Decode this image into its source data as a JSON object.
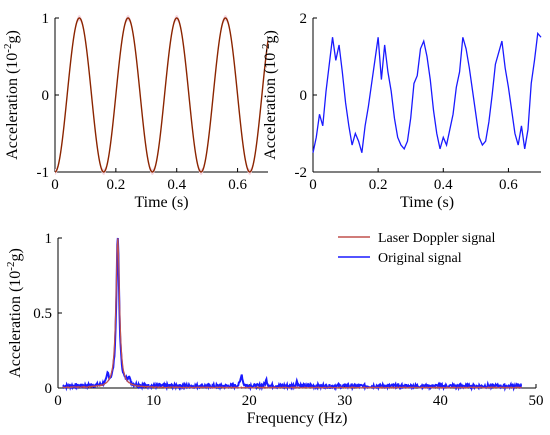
{
  "chart_data": [
    {
      "id": "top_left",
      "type": "line",
      "xlabel": "Time (s)",
      "ylabel": "Acceleration (10",
      "ylabel_sup": "-2",
      "ylabel_tail": "g)",
      "xlim": [
        0,
        0.7
      ],
      "ylim": [
        -1,
        1
      ],
      "xticks": [
        0,
        0.2,
        0.4,
        0.6
      ],
      "xtick_labels": [
        "0",
        "0.2",
        "0.4",
        "0.6"
      ],
      "yticks": [
        -1,
        0,
        1
      ],
      "ytick_labels": [
        "-1",
        "0",
        "1"
      ],
      "grid": false,
      "series": [
        {
          "color": "#8B2500",
          "frequency_hz": 6.25,
          "amplitude": 1.0,
          "phase_peak_s": 0.08,
          "x_start": 0.0,
          "x_end": 0.7
        }
      ],
      "shading": {
        "color": "#f6d8e3",
        "width_s": 0.022
      }
    },
    {
      "id": "top_right",
      "type": "line",
      "xlabel": "Time (s)",
      "ylabel": "Acceleration (10",
      "ylabel_sup": "-2",
      "ylabel_tail": "g)",
      "xlim": [
        0,
        0.7
      ],
      "ylim": [
        -2,
        2
      ],
      "xticks": [
        0,
        0.2,
        0.4,
        0.6
      ],
      "xtick_labels": [
        "0",
        "0.2",
        "0.4",
        "0.6"
      ],
      "yticks": [
        -2,
        0,
        2
      ],
      "ytick_labels": [
        "-2",
        "0",
        "2"
      ],
      "grid": false,
      "series": [
        {
          "color": "#1a1aff",
          "x": [
            0.0,
            0.01,
            0.02,
            0.03,
            0.04,
            0.05,
            0.06,
            0.07,
            0.08,
            0.09,
            0.1,
            0.11,
            0.12,
            0.13,
            0.14,
            0.15,
            0.16,
            0.17,
            0.18,
            0.19,
            0.2,
            0.21,
            0.22,
            0.23,
            0.24,
            0.25,
            0.26,
            0.27,
            0.28,
            0.29,
            0.3,
            0.31,
            0.32,
            0.33,
            0.34,
            0.35,
            0.36,
            0.37,
            0.38,
            0.39,
            0.4,
            0.41,
            0.42,
            0.43,
            0.44,
            0.45,
            0.46,
            0.47,
            0.48,
            0.49,
            0.5,
            0.51,
            0.52,
            0.53,
            0.54,
            0.55,
            0.56,
            0.57,
            0.58,
            0.59,
            0.6,
            0.61,
            0.62,
            0.63,
            0.64,
            0.65,
            0.66,
            0.67,
            0.68,
            0.69,
            0.7
          ],
          "y": [
            -1.5,
            -1.1,
            -0.5,
            -0.8,
            0.1,
            0.8,
            1.5,
            0.9,
            1.3,
            0.6,
            -0.2,
            -0.8,
            -1.3,
            -1.0,
            -1.2,
            -1.5,
            -0.8,
            -0.3,
            0.3,
            0.9,
            1.5,
            0.4,
            1.3,
            0.6,
            0.1,
            -0.6,
            -1.1,
            -1.3,
            -1.4,
            -1.2,
            -0.6,
            0.3,
            0.5,
            1.2,
            1.4,
            1.0,
            0.4,
            -0.4,
            -1.0,
            -1.4,
            -1.1,
            -1.3,
            -0.9,
            -0.5,
            0.2,
            0.6,
            1.5,
            1.2,
            0.7,
            0.1,
            -0.5,
            -1.1,
            -1.3,
            -1.2,
            -0.7,
            0.0,
            0.8,
            1.1,
            1.4,
            0.7,
            0.2,
            -0.4,
            -1.0,
            -1.3,
            -0.8,
            -1.4,
            -0.9,
            0.3,
            0.9,
            1.6,
            1.5
          ]
        }
      ]
    },
    {
      "id": "bottom",
      "type": "line",
      "xlabel": "Frequency (Hz)",
      "ylabel": "Acceleration (10",
      "ylabel_sup": "-2",
      "ylabel_tail": "g)",
      "xlim": [
        0,
        50
      ],
      "ylim": [
        0,
        1
      ],
      "xticks": [
        0,
        10,
        20,
        30,
        40,
        50
      ],
      "xtick_labels": [
        "0",
        "10",
        "20",
        "30",
        "40",
        "50"
      ],
      "yticks": [
        0,
        0.5,
        1
      ],
      "ytick_labels": [
        "0",
        "0.5",
        "1"
      ],
      "grid": false,
      "legend": {
        "position": "top-right"
      },
      "series": [
        {
          "name": "Laser Doppler signal",
          "color": "#c0504d",
          "peak_hz": 6.25,
          "peak": 1.0,
          "width_hz": 0.18
        },
        {
          "name": "Original signal",
          "color": "#1a1aff",
          "peak_hz": 6.25,
          "peak": 1.0,
          "width_hz": 0.18,
          "secondary_peaks": [
            [
              5.2,
              0.06
            ],
            [
              7.4,
              0.05
            ],
            [
              19.2,
              0.08
            ],
            [
              21.8,
              0.04
            ],
            [
              25.0,
              0.03
            ]
          ],
          "noise_level": 0.025
        }
      ]
    }
  ]
}
